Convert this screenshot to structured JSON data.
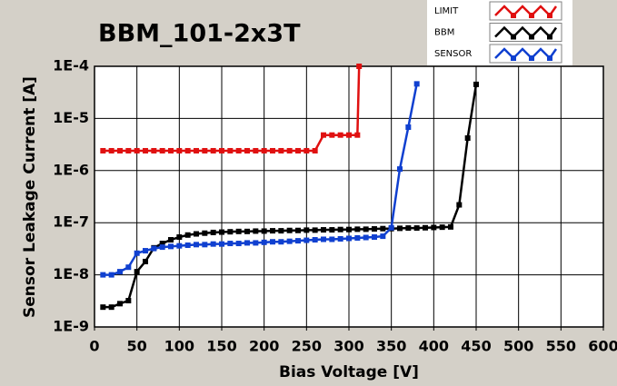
{
  "chart_data": {
    "type": "line",
    "title": "BBM_101-2x3T",
    "x_label": "Bias Voltage [V]",
    "y_label": "Sensor Leakage Current [A]",
    "y_scale": "log",
    "grid": true,
    "xlim": [
      0,
      600
    ],
    "xticks": [
      0,
      50,
      100,
      150,
      200,
      250,
      300,
      350,
      400,
      450,
      500,
      550,
      600
    ],
    "ylim": [
      1e-09,
      0.0001
    ],
    "yticks": [
      {
        "value": 1e-09,
        "label": "1E-9"
      },
      {
        "value": 1e-08,
        "label": "1E-8"
      },
      {
        "value": 1e-07,
        "label": "1E-7"
      },
      {
        "value": 1e-06,
        "label": "1E-6"
      },
      {
        "value": 1e-05,
        "label": "1E-5"
      },
      {
        "value": 0.0001,
        "label": "1E-4"
      }
    ],
    "series": [
      {
        "name": "LIMIT",
        "color": "#e01010",
        "x": [
          10,
          20,
          30,
          40,
          50,
          60,
          70,
          80,
          90,
          100,
          110,
          120,
          130,
          140,
          150,
          160,
          170,
          180,
          190,
          200,
          210,
          220,
          230,
          240,
          250,
          260,
          270,
          280,
          290,
          300,
          310,
          312
        ],
        "values": [
          2.4e-06,
          2.4e-06,
          2.4e-06,
          2.4e-06,
          2.4e-06,
          2.4e-06,
          2.4e-06,
          2.4e-06,
          2.4e-06,
          2.4e-06,
          2.4e-06,
          2.4e-06,
          2.4e-06,
          2.4e-06,
          2.4e-06,
          2.4e-06,
          2.4e-06,
          2.4e-06,
          2.4e-06,
          2.4e-06,
          2.4e-06,
          2.4e-06,
          2.4e-06,
          2.4e-06,
          2.4e-06,
          2.4e-06,
          4.8e-06,
          4.8e-06,
          4.8e-06,
          4.8e-06,
          4.8e-06,
          0.0001
        ]
      },
      {
        "name": "BBM",
        "color": "#000000",
        "x": [
          10,
          20,
          30,
          40,
          50,
          60,
          70,
          80,
          90,
          100,
          110,
          120,
          130,
          140,
          150,
          160,
          170,
          180,
          190,
          200,
          210,
          220,
          230,
          240,
          250,
          260,
          270,
          280,
          290,
          300,
          310,
          320,
          330,
          340,
          350,
          360,
          370,
          380,
          390,
          400,
          410,
          420,
          430,
          440,
          450
        ],
        "values": [
          2.4e-09,
          2.4e-09,
          2.8e-09,
          3.2e-09,
          1.15e-08,
          1.8e-08,
          3.3e-08,
          4e-08,
          4.7e-08,
          5.3e-08,
          5.8e-08,
          6.1e-08,
          6.3e-08,
          6.5e-08,
          6.6e-08,
          6.7e-08,
          6.8e-08,
          6.8e-08,
          6.9e-08,
          6.9e-08,
          7e-08,
          7e-08,
          7.1e-08,
          7.1e-08,
          7.2e-08,
          7.2e-08,
          7.3e-08,
          7.3e-08,
          7.4e-08,
          7.4e-08,
          7.5e-08,
          7.5e-08,
          7.6e-08,
          7.7e-08,
          7.7e-08,
          7.8e-08,
          7.9e-08,
          7.9e-08,
          8e-08,
          8.1e-08,
          8.2e-08,
          8.3e-08,
          2.2e-07,
          4.2e-06,
          4.5e-05
        ]
      },
      {
        "name": "SENSOR",
        "color": "#1040d0",
        "x": [
          10,
          20,
          30,
          40,
          50,
          60,
          70,
          80,
          90,
          100,
          110,
          120,
          130,
          140,
          150,
          160,
          170,
          180,
          190,
          200,
          210,
          220,
          230,
          240,
          250,
          260,
          270,
          280,
          290,
          300,
          310,
          320,
          330,
          340,
          350,
          360,
          370,
          380
        ],
        "values": [
          1e-08,
          1e-08,
          1.15e-08,
          1.4e-08,
          2.6e-08,
          2.9e-08,
          3.2e-08,
          3.4e-08,
          3.5e-08,
          3.6e-08,
          3.7e-08,
          3.8e-08,
          3.8e-08,
          3.9e-08,
          3.9e-08,
          4e-08,
          4e-08,
          4.1e-08,
          4.1e-08,
          4.2e-08,
          4.3e-08,
          4.3e-08,
          4.4e-08,
          4.5e-08,
          4.6e-08,
          4.7e-08,
          4.8e-08,
          4.8e-08,
          4.9e-08,
          5e-08,
          5.1e-08,
          5.2e-08,
          5.3e-08,
          5.5e-08,
          8e-08,
          1.07e-06,
          6.8e-06,
          4.6e-05
        ]
      }
    ]
  }
}
